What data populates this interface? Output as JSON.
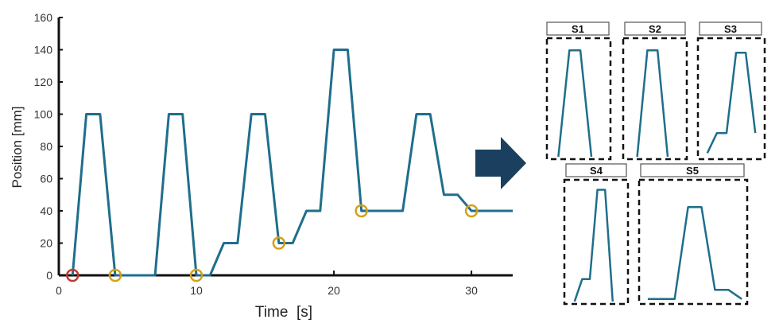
{
  "chart_data": [
    {
      "type": "line",
      "xlabel": "Time  [s]",
      "ylabel": "Position [mm]",
      "xlim": [
        0,
        33
      ],
      "ylim": [
        0,
        160
      ],
      "xticks": [
        0,
        10,
        20,
        30
      ],
      "xtick_labels": [
        "0",
        "10",
        "20",
        "30"
      ],
      "yticks": [
        0,
        20,
        40,
        60,
        80,
        100,
        120,
        140,
        160
      ],
      "ytick_labels": [
        "0",
        "20",
        "40",
        "60",
        "80",
        "100",
        "120",
        "140",
        "160"
      ],
      "grid": false,
      "line_color": "#1f6e8c",
      "series": [
        {
          "x": [
            1.0,
            2.0,
            3.0,
            4.1,
            7.0,
            8.0,
            9.0,
            10.0,
            11.0,
            12.0,
            13.0,
            14.0,
            15.0,
            16.0,
            17.0,
            18.0,
            19.0,
            20.0,
            21.0,
            22.0,
            25.0,
            26.0,
            27.0,
            28.0,
            29.0,
            30.0,
            33.0
          ],
          "y": [
            0,
            100,
            100,
            0,
            0,
            100,
            100,
            0,
            0,
            20,
            20,
            100,
            100,
            20,
            20,
            40,
            40,
            140,
            140,
            40,
            40,
            100,
            100,
            50,
            50,
            40,
            40
          ]
        }
      ],
      "markers": [
        {
          "x": 1.0,
          "y": 0,
          "color": "#c0392b"
        },
        {
          "x": 4.1,
          "y": 0,
          "color": "#d4a017"
        },
        {
          "x": 10.0,
          "y": 0,
          "color": "#d4a017"
        },
        {
          "x": 16.0,
          "y": 20,
          "color": "#d4a017"
        },
        {
          "x": 22.0,
          "y": 40,
          "color": "#d4a017"
        },
        {
          "x": 30.0,
          "y": 40,
          "color": "#d4a017"
        }
      ]
    },
    {
      "type": "line",
      "panels": [
        {
          "label": "S1",
          "x": [
            0,
            1,
            2,
            3
          ],
          "y": [
            0,
            100,
            100,
            0
          ]
        },
        {
          "label": "S2",
          "x": [
            0,
            1,
            2,
            3
          ],
          "y": [
            0,
            100,
            100,
            0
          ]
        },
        {
          "label": "S3",
          "x": [
            0,
            1,
            2,
            3,
            4,
            5
          ],
          "y": [
            0,
            20,
            20,
            100,
            100,
            20
          ]
        },
        {
          "label": "S4",
          "x": [
            0,
            1,
            2,
            3,
            4,
            5
          ],
          "y": [
            0,
            20,
            20,
            100,
            100,
            0
          ]
        },
        {
          "label": "S5",
          "x": [
            0,
            2,
            3,
            4,
            5,
            6,
            7
          ],
          "y": [
            0,
            0,
            100,
            100,
            10,
            10,
            0
          ]
        }
      ]
    }
  ],
  "arrow_color": "#1b3f5e"
}
